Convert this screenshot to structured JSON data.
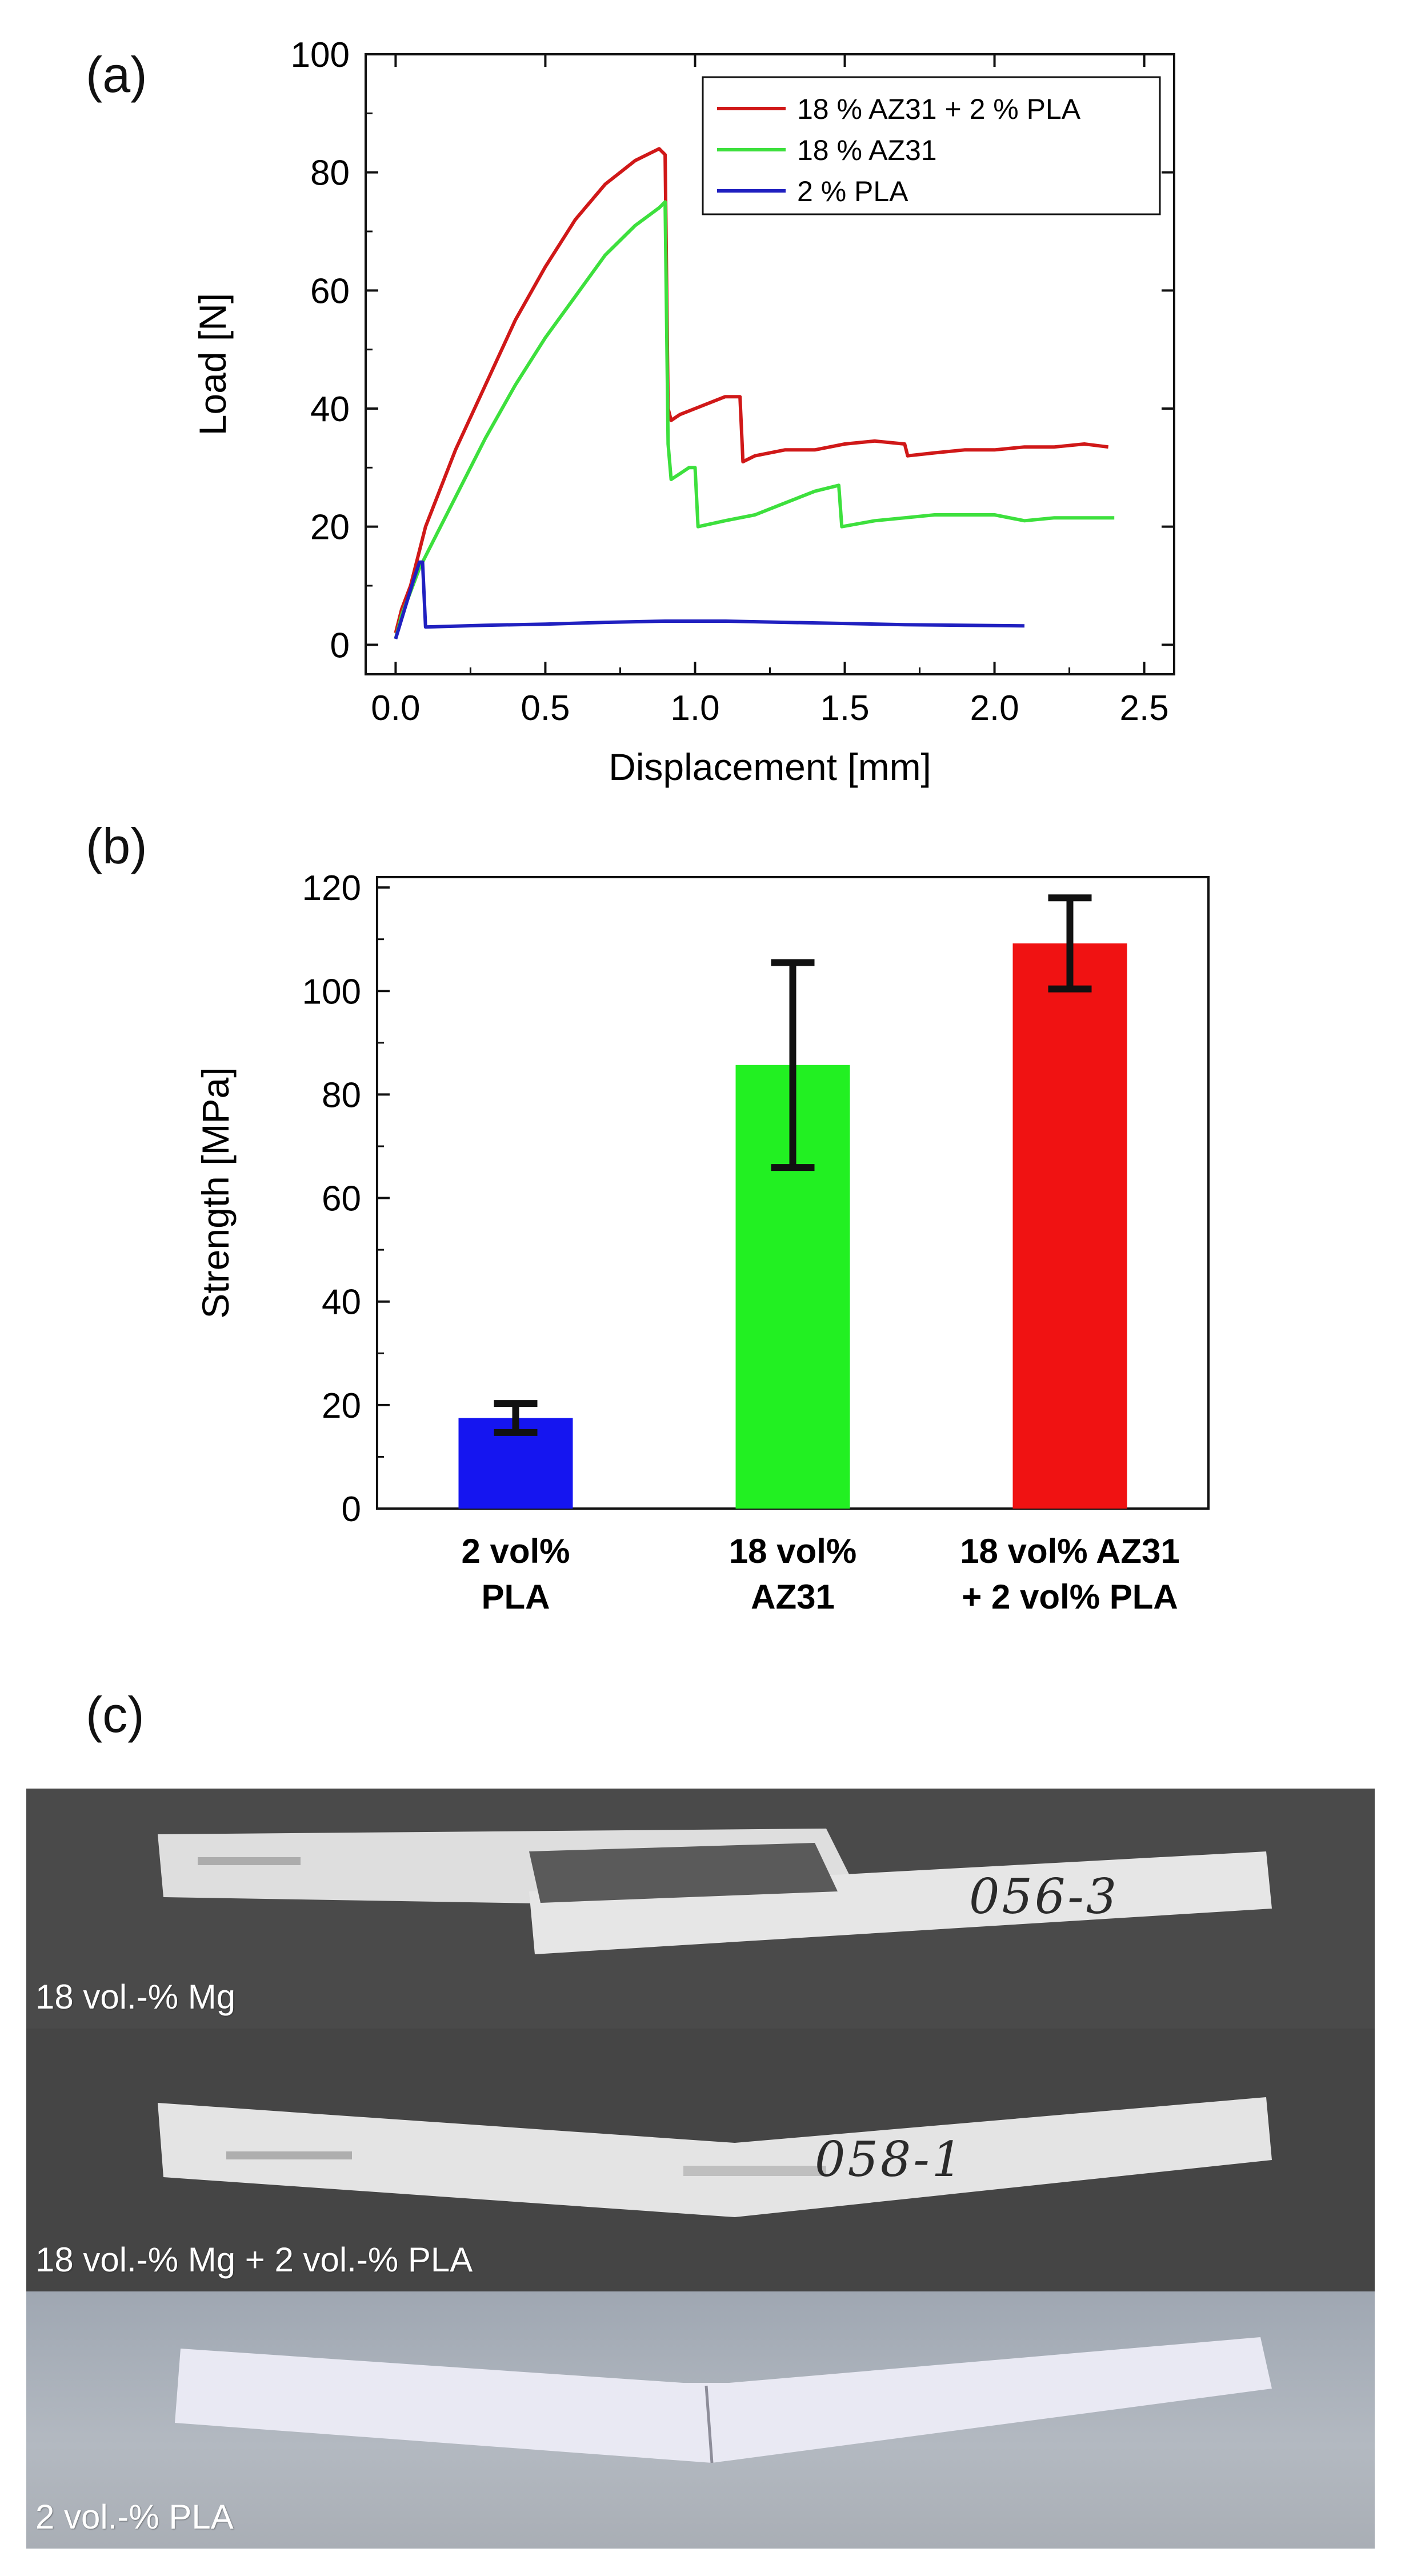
{
  "panels": {
    "a": "(a)",
    "b": "(b)",
    "c": "(c)"
  },
  "chart_data": [
    {
      "type": "line",
      "xlabel": "Displacement [mm]",
      "ylabel": "Load [N]",
      "xlim": [
        -0.1,
        2.6
      ],
      "ylim": [
        -5,
        100
      ],
      "xticks": [
        0.0,
        0.5,
        1.0,
        1.5,
        2.0,
        2.5
      ],
      "xtick_labels": [
        "0.0",
        "0.5",
        "1.0",
        "1.5",
        "2.0",
        "2.5"
      ],
      "yticks": [
        0,
        20,
        40,
        60,
        80,
        100
      ],
      "ytick_labels": [
        "0",
        "20",
        "40",
        "60",
        "80",
        "100"
      ],
      "legend_position": "top-right",
      "series": [
        {
          "name": "18 % AZ31 + 2 % PLA",
          "color": "#d01818",
          "x": [
            0.0,
            0.02,
            0.05,
            0.08,
            0.1,
            0.2,
            0.3,
            0.4,
            0.5,
            0.6,
            0.7,
            0.8,
            0.88,
            0.9,
            0.91,
            0.92,
            0.95,
            1.0,
            1.1,
            1.15,
            1.16,
            1.2,
            1.3,
            1.4,
            1.5,
            1.6,
            1.7,
            1.71,
            1.8,
            1.9,
            2.0,
            2.1,
            2.2,
            2.3,
            2.38
          ],
          "y": [
            2,
            6,
            10,
            16,
            20,
            33,
            44,
            55,
            64,
            72,
            78,
            82,
            84,
            83,
            40,
            38,
            39,
            40,
            42,
            42,
            31,
            32,
            33,
            33,
            34,
            34.5,
            34,
            32,
            32.5,
            33,
            33,
            33.5,
            33.5,
            34,
            33.5
          ]
        },
        {
          "name": "18 % AZ31",
          "color": "#3de03d",
          "x": [
            0.0,
            0.02,
            0.05,
            0.08,
            0.1,
            0.2,
            0.3,
            0.4,
            0.5,
            0.6,
            0.7,
            0.8,
            0.88,
            0.9,
            0.91,
            0.92,
            0.95,
            0.98,
            1.0,
            1.01,
            1.1,
            1.2,
            1.3,
            1.4,
            1.48,
            1.49,
            1.6,
            1.7,
            1.8,
            1.9,
            2.0,
            2.1,
            2.2,
            2.3,
            2.4
          ],
          "y": [
            1,
            5,
            9,
            13,
            15,
            25,
            35,
            44,
            52,
            59,
            66,
            71,
            74,
            75,
            34,
            28,
            29,
            30,
            30,
            20,
            21,
            22,
            24,
            26,
            27,
            20,
            21,
            21.5,
            22,
            22,
            22,
            21,
            21.5,
            21.5,
            21.5
          ]
        },
        {
          "name": "2 % PLA",
          "color": "#2020c0",
          "x": [
            0.0,
            0.03,
            0.06,
            0.08,
            0.09,
            0.1,
            0.3,
            0.5,
            0.7,
            0.9,
            1.1,
            1.3,
            1.5,
            1.7,
            1.9,
            2.1
          ],
          "y": [
            1,
            6,
            11,
            14,
            14,
            3,
            3.3,
            3.5,
            3.8,
            4,
            4,
            3.8,
            3.6,
            3.4,
            3.3,
            3.2
          ]
        }
      ]
    },
    {
      "type": "bar",
      "ylabel": "Strength [MPa]",
      "ylim": [
        0,
        122
      ],
      "yticks": [
        0,
        20,
        40,
        60,
        80,
        100,
        120
      ],
      "ytick_labels": [
        "0",
        "20",
        "40",
        "60",
        "80",
        "100",
        "120"
      ],
      "categories": [
        [
          "2 vol%",
          "PLA"
        ],
        [
          "18 vol%",
          "AZ31"
        ],
        [
          "18 vol% AZ31",
          "+ 2 vol% PLA"
        ]
      ],
      "values": [
        17.5,
        85.7,
        109.2
      ],
      "errors": [
        2.8,
        19.8,
        8.8
      ],
      "colors": [
        "#1515f0",
        "#22f022",
        "#f01212"
      ]
    }
  ],
  "photos": [
    {
      "caption": "18 vol.-% Mg",
      "sample_id": "056-3"
    },
    {
      "caption": "18 vol.-% Mg + 2 vol.-% PLA",
      "sample_id": "058-1"
    },
    {
      "caption": "2 vol.-% PLA"
    }
  ]
}
